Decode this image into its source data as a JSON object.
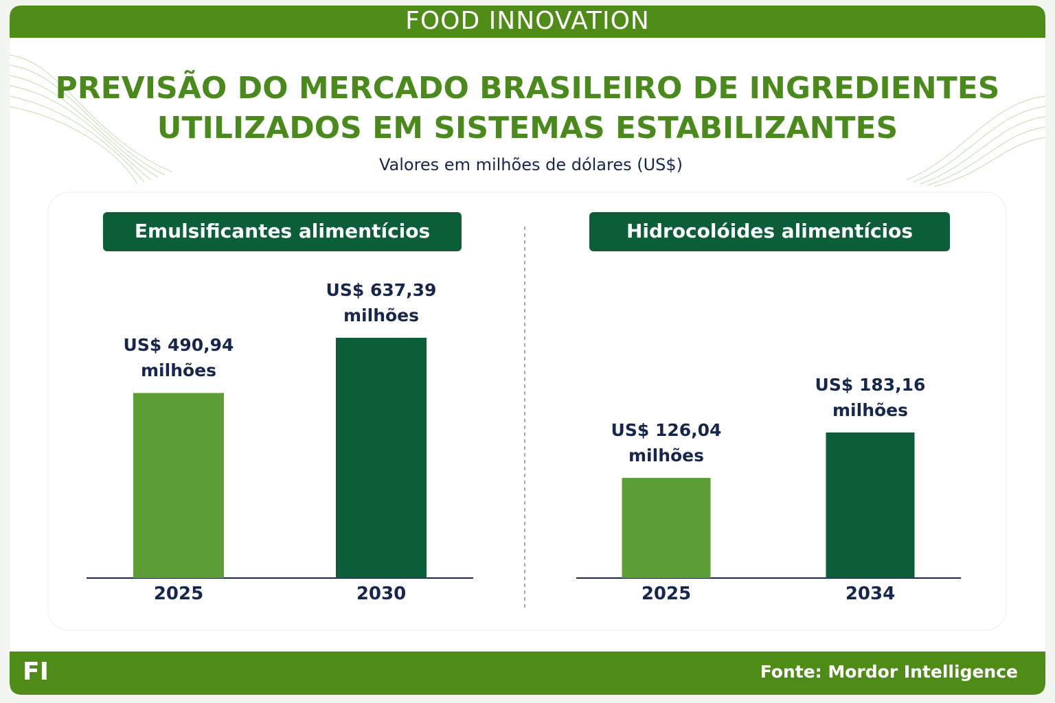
{
  "header": "FOOD INNOVATION",
  "title": [
    "PREVISÃO DO MERCADO BRASILEIRO DE INGREDIENTES",
    "UTILIZADOS EM SISTEMAS ESTABILIZANTES"
  ],
  "subtitle": "Valores em milhões de dólares (US$)",
  "chart_data": [
    {
      "type": "bar",
      "title": "Emulsificantes alimentícios",
      "categories": [
        "2025",
        "2030"
      ],
      "values": [
        490.94,
        637.39
      ],
      "value_labels": [
        "US$ 490,94 milhões",
        "US$ 637,39 milhões"
      ],
      "colors": [
        "#5c9e35",
        "#0b5e38"
      ]
    },
    {
      "type": "bar",
      "title": "Hidrocolóides alimentícios",
      "categories": [
        "2025",
        "2034"
      ],
      "values": [
        126.04,
        183.16
      ],
      "value_labels": [
        "US$ 126,04 milhões",
        "US$ 183,16 milhões"
      ],
      "colors": [
        "#5c9e35",
        "#0b5e38"
      ]
    }
  ],
  "footer": {
    "logo": "FI",
    "source": "Fonte: Mordor Intelligence"
  }
}
